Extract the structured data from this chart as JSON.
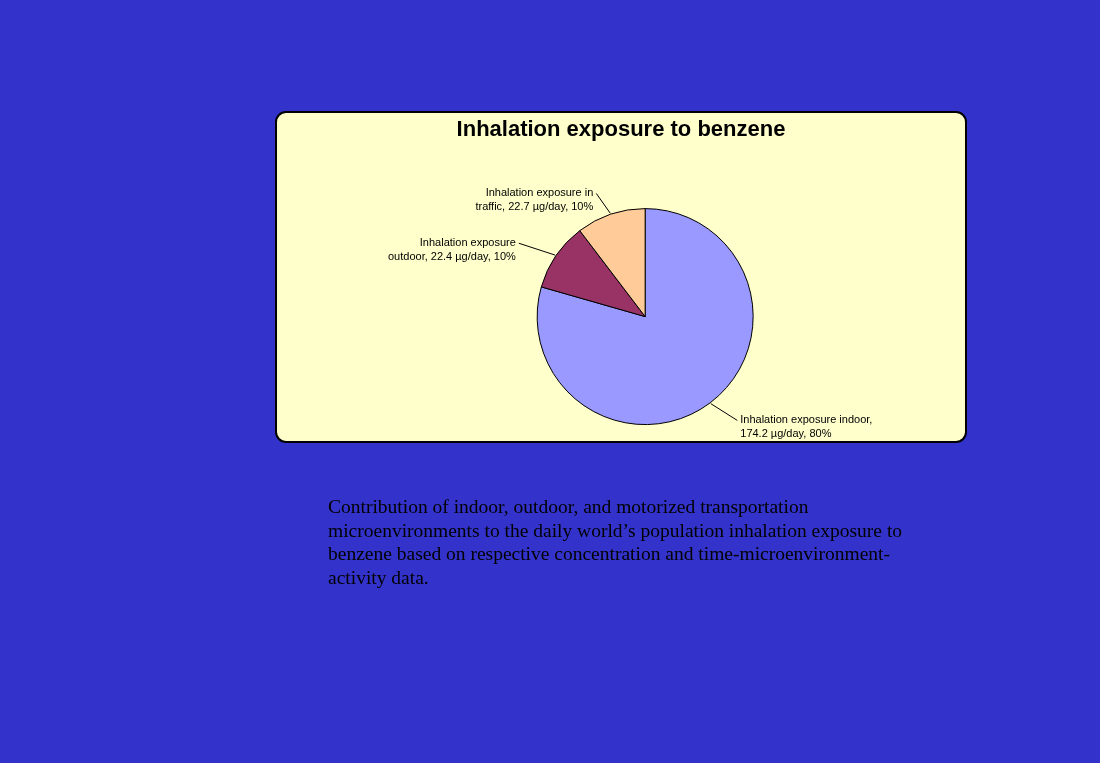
{
  "chart_data": {
    "type": "pie",
    "title": "Inhalation exposure to benzene",
    "categories": [
      "Inhalation exposure indoor, 174.2 µg/day, 80%",
      "Inhalation exposure outdoor, 22.4 µg/day, 10%",
      "Inhalation exposure in traffic, 22.7 µg/day, 10%"
    ],
    "values": [
      174.2,
      22.4,
      22.7
    ],
    "colors": [
      "#9999ff",
      "#993366",
      "#ffcc99"
    ],
    "annotations": [
      "Contribution of indoor, outdoor, and motorized transportation microenvironments to the daily world’s population inhalation exposure to benzene based on respective concentration and time-microenvironment-activity data."
    ]
  }
}
